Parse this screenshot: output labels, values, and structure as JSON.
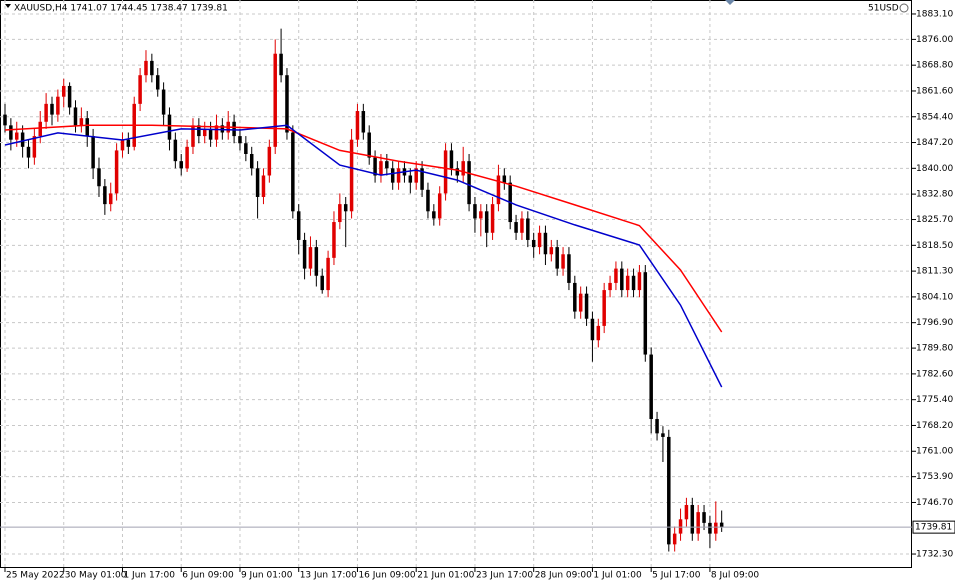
{
  "chart_data": {
    "type": "candlestick",
    "header": "XAUUSD,H4  1741.07 1744.45 1738.47 1739.81",
    "account": "51USD",
    "up_color": "#e00000",
    "down_color": "#000000",
    "grid": true,
    "current_price": 1739.81,
    "ylim": [
      1728.4,
      1887.0
    ],
    "yticks": [
      {
        "value": 1883.1,
        "label": "1883.10"
      },
      {
        "value": 1876.0,
        "label": "1876.00"
      },
      {
        "value": 1868.8,
        "label": "1868.80"
      },
      {
        "value": 1861.6,
        "label": "1861.60"
      },
      {
        "value": 1854.4,
        "label": "1854.40"
      },
      {
        "value": 1847.2,
        "label": "1847.20"
      },
      {
        "value": 1840.0,
        "label": "1840.00"
      },
      {
        "value": 1832.8,
        "label": "1832.80"
      },
      {
        "value": 1825.7,
        "label": "1825.70"
      },
      {
        "value": 1818.5,
        "label": "1818.50"
      },
      {
        "value": 1811.3,
        "label": "1811.30"
      },
      {
        "value": 1804.1,
        "label": "1804.10"
      },
      {
        "value": 1796.9,
        "label": "1796.90"
      },
      {
        "value": 1789.8,
        "label": "1789.80"
      },
      {
        "value": 1782.6,
        "label": "1782.60"
      },
      {
        "value": 1775.4,
        "label": "1775.40"
      },
      {
        "value": 1768.2,
        "label": "1768.20"
      },
      {
        "value": 1761.0,
        "label": "1761.00"
      },
      {
        "value": 1753.9,
        "label": "1753.90"
      },
      {
        "value": 1746.7,
        "label": "1746.70"
      },
      {
        "value": 1732.3,
        "label": "1732.30"
      }
    ],
    "xlim": [
      -0.85,
      154.4
    ],
    "xticks": [
      {
        "value": 0,
        "label": "25 May 2022"
      },
      {
        "value": 10,
        "label": "30 May 01:00"
      },
      {
        "value": 20,
        "label": "1 Jun 17:00"
      },
      {
        "value": 30,
        "label": "6 Jun 09:00"
      },
      {
        "value": 40,
        "label": "9 Jun 01:00"
      },
      {
        "value": 50,
        "label": "13 Jun 17:00"
      },
      {
        "value": 60,
        "label": "16 Jun 09:00"
      },
      {
        "value": 70,
        "label": "21 Jun 01:00"
      },
      {
        "value": 80,
        "label": "23 Jun 17:00"
      },
      {
        "value": 90,
        "label": "28 Jun 09:00"
      },
      {
        "value": 100,
        "label": "1 Jul 01:00"
      },
      {
        "value": 110,
        "label": "5 Jul 17:00"
      },
      {
        "value": 120,
        "label": "8 Jul 09:00"
      }
    ],
    "candles": [
      [
        1855,
        1858,
        1850,
        1852
      ],
      [
        1852,
        1854,
        1845,
        1848
      ],
      [
        1848,
        1853,
        1846,
        1850
      ],
      [
        1850,
        1852,
        1843,
        1846
      ],
      [
        1846,
        1848,
        1840,
        1843
      ],
      [
        1843,
        1851,
        1841,
        1849
      ],
      [
        1849,
        1856,
        1847,
        1853
      ],
      [
        1853,
        1861,
        1851,
        1858
      ],
      [
        1858,
        1860,
        1852,
        1855
      ],
      [
        1855,
        1862,
        1853,
        1860
      ],
      [
        1860,
        1865,
        1857,
        1863
      ],
      [
        1863,
        1864,
        1855,
        1857
      ],
      [
        1857,
        1859,
        1850,
        1852
      ],
      [
        1852,
        1857,
        1850,
        1854
      ],
      [
        1854,
        1856,
        1846,
        1849
      ],
      [
        1849,
        1851,
        1837,
        1840
      ],
      [
        1840,
        1843,
        1832,
        1835
      ],
      [
        1835,
        1837,
        1827,
        1830
      ],
      [
        1830,
        1836,
        1828,
        1833
      ],
      [
        1833,
        1847,
        1831,
        1845
      ],
      [
        1845,
        1850,
        1843,
        1848
      ],
      [
        1848,
        1850,
        1844,
        1846
      ],
      [
        1846,
        1860,
        1845,
        1858
      ],
      [
        1858,
        1868,
        1856,
        1866
      ],
      [
        1866,
        1873,
        1864,
        1870
      ],
      [
        1870,
        1872,
        1864,
        1866
      ],
      [
        1866,
        1868,
        1860,
        1862
      ],
      [
        1862,
        1864,
        1852,
        1855
      ],
      [
        1855,
        1857,
        1845,
        1848
      ],
      [
        1848,
        1850,
        1840,
        1842
      ],
      [
        1842,
        1844,
        1838,
        1840
      ],
      [
        1840,
        1848,
        1839,
        1846
      ],
      [
        1846,
        1854,
        1844,
        1852
      ],
      [
        1852,
        1854,
        1847,
        1849
      ],
      [
        1849,
        1853,
        1847,
        1851
      ],
      [
        1851,
        1853,
        1846,
        1848
      ],
      [
        1848,
        1855,
        1846,
        1852
      ],
      [
        1852,
        1854,
        1848,
        1850
      ],
      [
        1850,
        1856,
        1848,
        1853
      ],
      [
        1853,
        1855,
        1847,
        1849
      ],
      [
        1849,
        1851,
        1845,
        1847
      ],
      [
        1847,
        1849,
        1842,
        1844
      ],
      [
        1844,
        1846,
        1838,
        1840
      ],
      [
        1840,
        1842,
        1826,
        1832
      ],
      [
        1832,
        1840,
        1830,
        1838
      ],
      [
        1838,
        1848,
        1836,
        1846
      ],
      [
        1846,
        1876,
        1844,
        1872
      ],
      [
        1872,
        1879,
        1864,
        1866
      ],
      [
        1866,
        1868,
        1848,
        1850
      ],
      [
        1850,
        1852,
        1826,
        1828
      ],
      [
        1828,
        1830,
        1816,
        1820
      ],
      [
        1820,
        1822,
        1809,
        1812
      ],
      [
        1812,
        1821,
        1810,
        1818
      ],
      [
        1818,
        1820,
        1807,
        1810
      ],
      [
        1810,
        1812,
        1805,
        1806
      ],
      [
        1806,
        1817,
        1804,
        1815
      ],
      [
        1815,
        1828,
        1813,
        1825
      ],
      [
        1825,
        1833,
        1823,
        1830
      ],
      [
        1830,
        1832,
        1818,
        1828
      ],
      [
        1828,
        1851,
        1826,
        1848
      ],
      [
        1848,
        1858,
        1846,
        1856
      ],
      [
        1856,
        1858,
        1848,
        1850
      ],
      [
        1850,
        1852,
        1841,
        1843
      ],
      [
        1843,
        1845,
        1836,
        1838
      ],
      [
        1838,
        1844,
        1836,
        1842
      ],
      [
        1842,
        1844,
        1838,
        1840
      ],
      [
        1840,
        1842,
        1834,
        1836
      ],
      [
        1836,
        1842,
        1834,
        1840
      ],
      [
        1840,
        1842,
        1836,
        1838
      ],
      [
        1838,
        1840,
        1833,
        1836
      ],
      [
        1836,
        1842,
        1834,
        1840
      ],
      [
        1840,
        1842,
        1832,
        1834
      ],
      [
        1834,
        1836,
        1826,
        1828
      ],
      [
        1828,
        1830,
        1824,
        1826
      ],
      [
        1826,
        1835,
        1824,
        1833
      ],
      [
        1833,
        1847,
        1831,
        1845
      ],
      [
        1845,
        1847,
        1838,
        1840
      ],
      [
        1840,
        1842,
        1836,
        1838
      ],
      [
        1838,
        1846,
        1836,
        1842
      ],
      [
        1842,
        1844,
        1828,
        1830
      ],
      [
        1830,
        1832,
        1822,
        1826
      ],
      [
        1826,
        1830,
        1821,
        1828
      ],
      [
        1828,
        1830,
        1818,
        1822
      ],
      [
        1822,
        1832,
        1820,
        1830
      ],
      [
        1830,
        1841,
        1828,
        1838
      ],
      [
        1838,
        1840,
        1834,
        1836
      ],
      [
        1836,
        1838,
        1823,
        1825
      ],
      [
        1825,
        1827,
        1820,
        1822
      ],
      [
        1822,
        1828,
        1820,
        1826
      ],
      [
        1826,
        1828,
        1818,
        1820
      ],
      [
        1820,
        1822,
        1815,
        1818
      ],
      [
        1818,
        1824,
        1816,
        1822
      ],
      [
        1822,
        1824,
        1813,
        1816
      ],
      [
        1816,
        1820,
        1814,
        1818
      ],
      [
        1818,
        1820,
        1810,
        1812
      ],
      [
        1812,
        1818,
        1810,
        1816
      ],
      [
        1816,
        1818,
        1806,
        1808
      ],
      [
        1808,
        1810,
        1798,
        1800
      ],
      [
        1800,
        1807,
        1798,
        1805
      ],
      [
        1805,
        1807,
        1796,
        1798
      ],
      [
        1798,
        1800,
        1786,
        1792
      ],
      [
        1792,
        1798,
        1790,
        1796
      ],
      [
        1796,
        1808,
        1794,
        1806
      ],
      [
        1806,
        1810,
        1804,
        1808
      ],
      [
        1808,
        1814,
        1806,
        1812
      ],
      [
        1812,
        1814,
        1804,
        1806
      ],
      [
        1806,
        1812,
        1804,
        1810
      ],
      [
        1810,
        1812,
        1804,
        1806
      ],
      [
        1806,
        1813,
        1804,
        1811
      ],
      [
        1811,
        1813,
        1786,
        1788
      ],
      [
        1788,
        1790,
        1766,
        1770
      ],
      [
        1770,
        1772,
        1764,
        1766
      ],
      [
        1766,
        1768,
        1758,
        1765
      ],
      [
        1765,
        1767,
        1733,
        1735
      ],
      [
        1735,
        1740,
        1733,
        1738
      ],
      [
        1738,
        1745,
        1736,
        1742
      ],
      [
        1742,
        1748,
        1740,
        1746
      ],
      [
        1746,
        1748,
        1736,
        1738
      ],
      [
        1738,
        1746,
        1736,
        1744
      ],
      [
        1744,
        1746,
        1739,
        1741
      ],
      [
        1741,
        1743,
        1734,
        1738
      ],
      [
        1738,
        1747,
        1736,
        1741.07
      ],
      [
        1741.07,
        1744.45,
        1738.47,
        1739.81
      ]
    ],
    "lines": [
      {
        "color": "#ff0000",
        "x": [
          0,
          14,
          25,
          38,
          48,
          57,
          67,
          77,
          87,
          97,
          108,
          115,
          122
        ],
        "values": [
          1850.7,
          1852,
          1852,
          1851.5,
          1851,
          1845,
          1842,
          1839.5,
          1835,
          1829.8,
          1824,
          1811.6,
          1794.3
        ]
      },
      {
        "color": "#0000cc",
        "x": [
          0,
          9,
          20,
          30,
          40,
          48,
          57,
          64,
          70,
          77,
          87,
          97,
          108,
          115,
          122
        ],
        "values": [
          1846.5,
          1849.9,
          1847.9,
          1851,
          1850.7,
          1852,
          1840.9,
          1838.1,
          1839.5,
          1836.7,
          1829.8,
          1824.2,
          1818.6,
          1801.8,
          1778.9
        ]
      }
    ]
  }
}
